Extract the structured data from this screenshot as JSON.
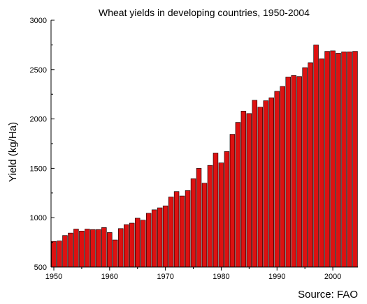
{
  "chart_data": {
    "type": "bar",
    "title": "Wheat yields in developing countries, 1950-2004",
    "xlabel": "",
    "ylabel": "Yield (kg/Ha)",
    "source": "Source:  FAO",
    "xlim": [
      1950,
      2004
    ],
    "ylim": [
      500,
      3000
    ],
    "xticks": [
      1950,
      1960,
      1970,
      1980,
      1990,
      2000
    ],
    "yticks": [
      500,
      1000,
      1500,
      2000,
      2500,
      3000
    ],
    "bar_color": "#dd1111",
    "grid": false,
    "x": [
      1950,
      1951,
      1952,
      1953,
      1954,
      1955,
      1956,
      1957,
      1958,
      1959,
      1960,
      1961,
      1962,
      1963,
      1964,
      1965,
      1966,
      1967,
      1968,
      1969,
      1970,
      1971,
      1972,
      1973,
      1974,
      1975,
      1976,
      1977,
      1978,
      1979,
      1980,
      1981,
      1982,
      1983,
      1984,
      1985,
      1986,
      1987,
      1988,
      1989,
      1990,
      1991,
      1992,
      1993,
      1994,
      1995,
      1996,
      1997,
      1998,
      1999,
      2000,
      2001,
      2002,
      2003,
      2004
    ],
    "values": [
      760,
      765,
      820,
      845,
      885,
      865,
      885,
      880,
      880,
      900,
      850,
      775,
      890,
      930,
      945,
      995,
      975,
      1045,
      1080,
      1100,
      1120,
      1210,
      1265,
      1220,
      1275,
      1395,
      1500,
      1350,
      1530,
      1655,
      1555,
      1670,
      1845,
      1965,
      2080,
      2055,
      2190,
      2120,
      2185,
      2215,
      2280,
      2330,
      2425,
      2440,
      2430,
      2520,
      2570,
      2750,
      2610,
      2685,
      2690,
      2665,
      2680,
      2680,
      2685
    ]
  }
}
